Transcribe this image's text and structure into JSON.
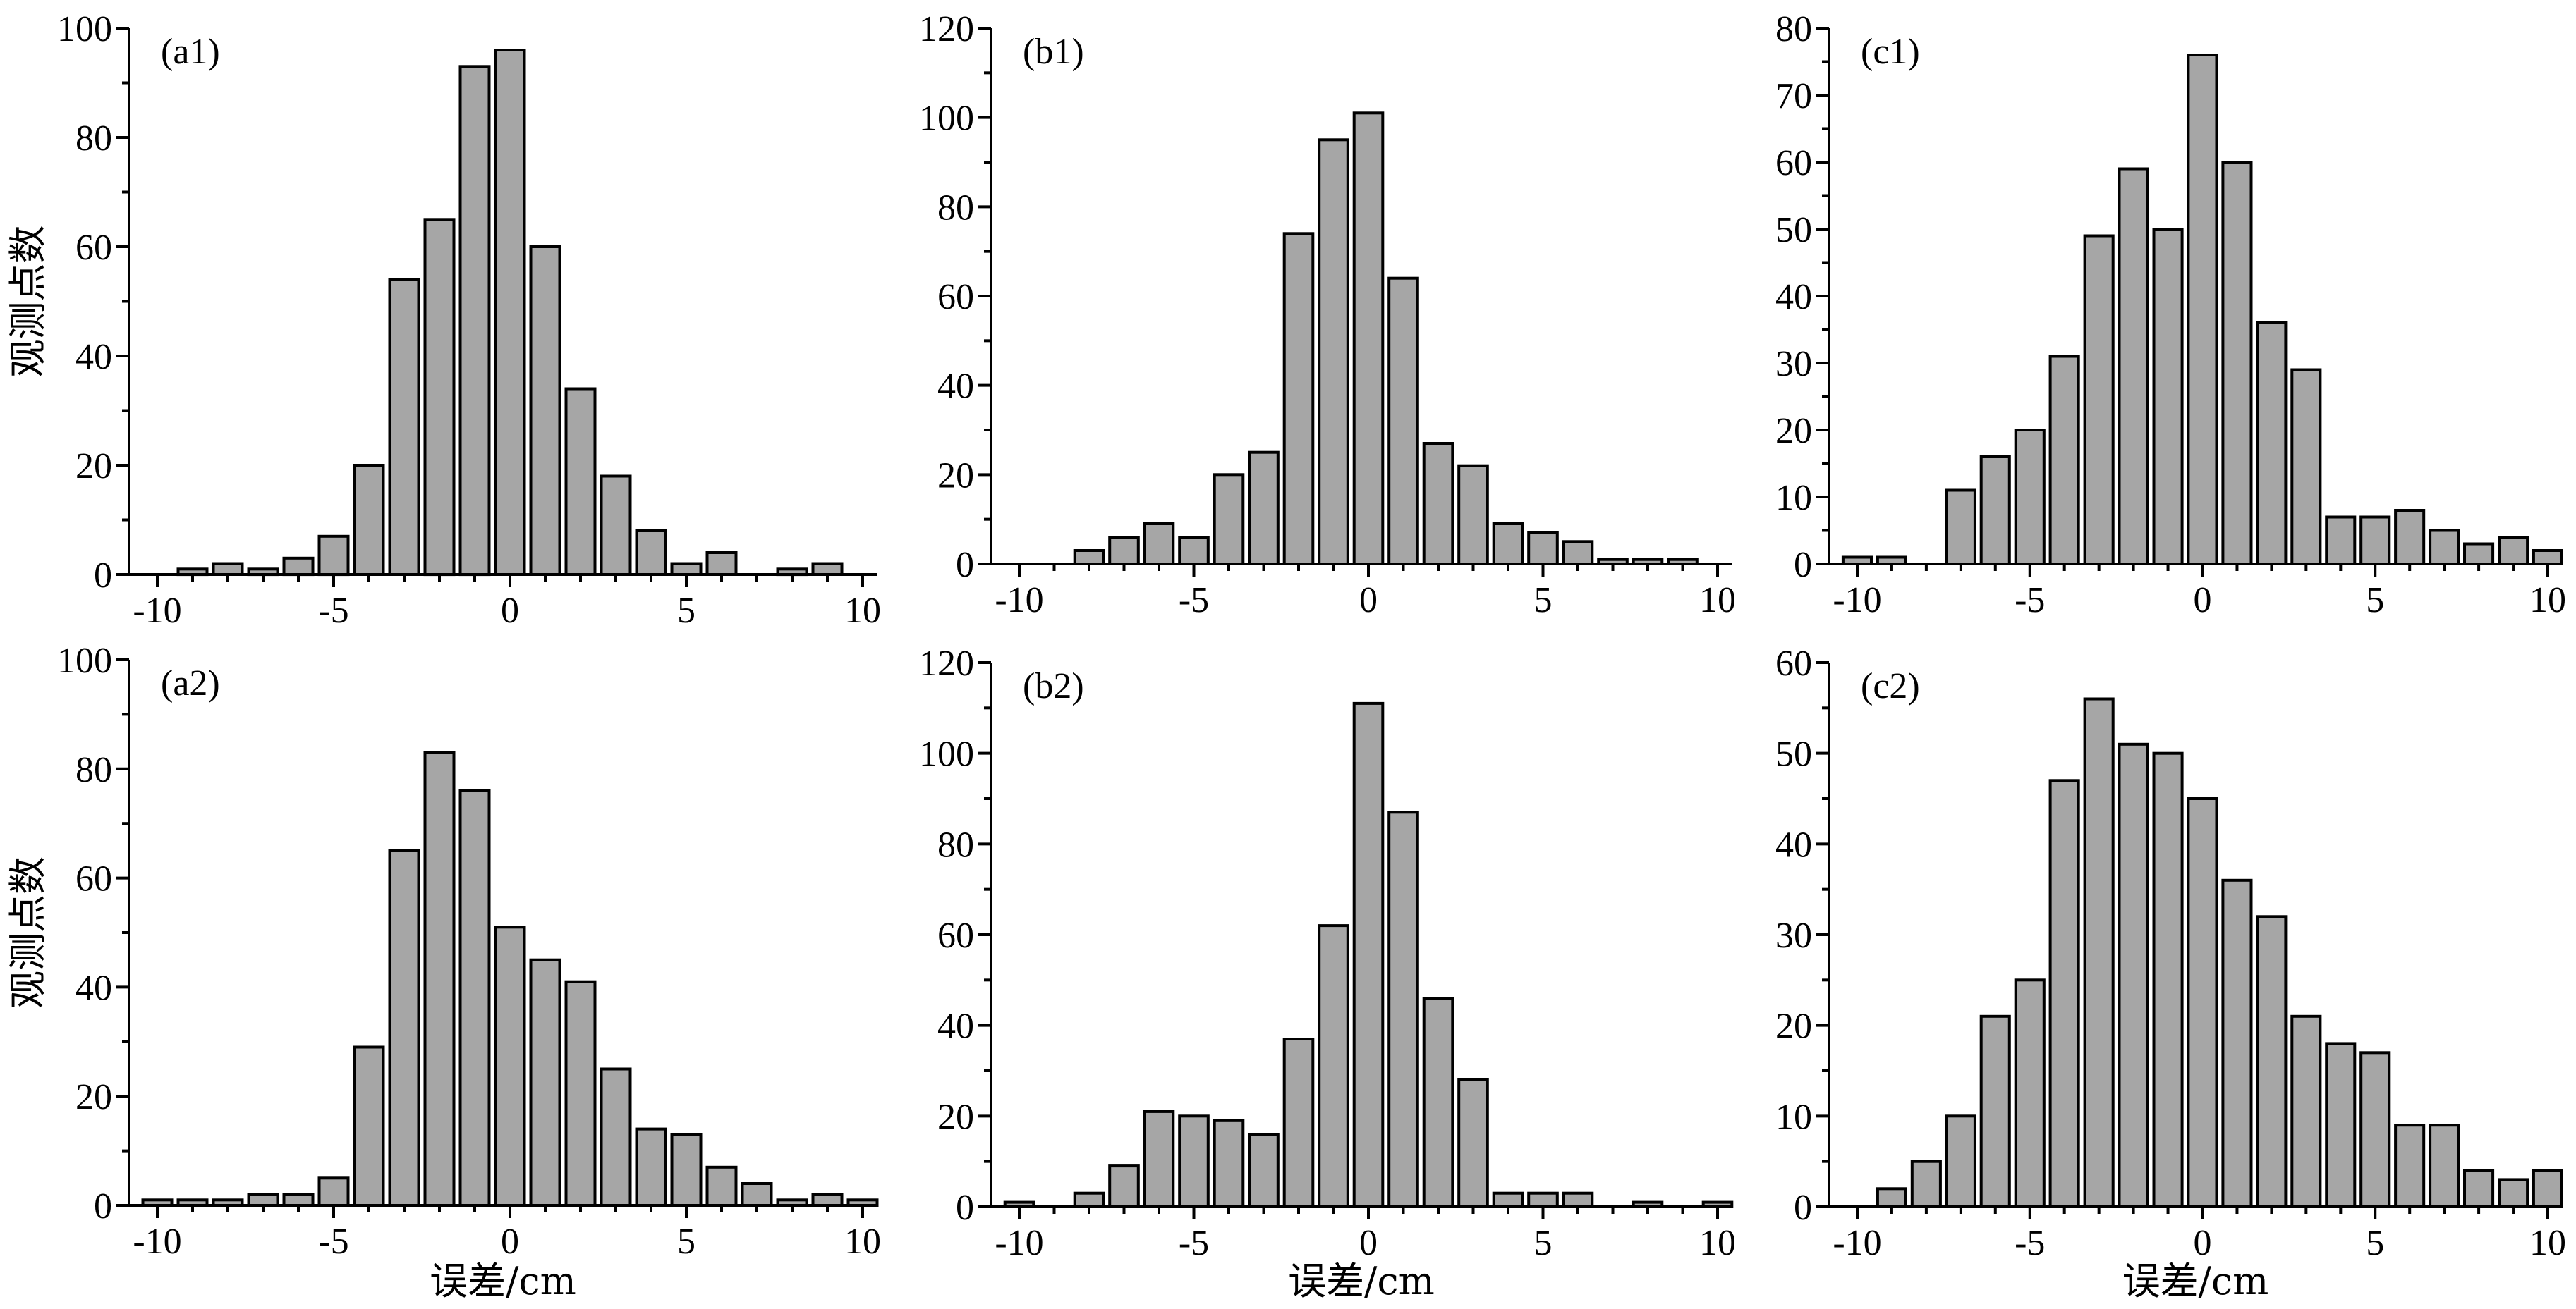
{
  "chart_data": [
    {
      "id": "a1",
      "panel_label": "(a1)",
      "type": "bar",
      "ylabel": "观测点数",
      "xlabel": "",
      "xlim": [
        -10,
        10
      ],
      "ylim": [
        0,
        100
      ],
      "xticks": [
        -10,
        -5,
        0,
        5,
        10
      ],
      "yticks": [
        0,
        20,
        40,
        60,
        80,
        100
      ],
      "y_minor_step": 10,
      "tick_labels_x": [
        "-10",
        "-5",
        "0",
        "5",
        "10"
      ],
      "tick_labels_y": [
        "0",
        "20",
        "40",
        "60",
        "80",
        "100"
      ],
      "x": [
        -9,
        -8,
        -7,
        -6,
        -5,
        -4,
        -3,
        -2,
        -1,
        0,
        1,
        2,
        3,
        4,
        5,
        6,
        8,
        9
      ],
      "values": [
        1,
        2,
        1,
        3,
        7,
        20,
        54,
        65,
        93,
        96,
        60,
        34,
        18,
        8,
        2,
        4,
        1,
        2
      ]
    },
    {
      "id": "b1",
      "panel_label": "(b1)",
      "type": "bar",
      "ylabel": "",
      "xlabel": "",
      "xlim": [
        -10,
        10
      ],
      "ylim": [
        0,
        120
      ],
      "xticks": [
        -10,
        -5,
        0,
        5,
        10
      ],
      "yticks": [
        0,
        20,
        40,
        60,
        80,
        100,
        120
      ],
      "y_minor_step": 10,
      "tick_labels_x": [
        "-10",
        "-5",
        "0",
        "5",
        "10"
      ],
      "tick_labels_y": [
        "0",
        "20",
        "40",
        "60",
        "80",
        "100",
        "120"
      ],
      "x": [
        -8,
        -7,
        -6,
        -5,
        -4,
        -3,
        -2,
        -1,
        0,
        1,
        2,
        3,
        4,
        5,
        6,
        7,
        8,
        9
      ],
      "values": [
        3,
        6,
        9,
        6,
        20,
        25,
        74,
        95,
        101,
        64,
        27,
        22,
        9,
        7,
        5,
        1,
        1,
        1
      ]
    },
    {
      "id": "c1",
      "panel_label": "(c1)",
      "type": "bar",
      "ylabel": "",
      "xlabel": "",
      "xlim": [
        -10,
        10
      ],
      "ylim": [
        0,
        80
      ],
      "xticks": [
        -10,
        -5,
        0,
        5,
        10
      ],
      "yticks": [
        0,
        10,
        20,
        30,
        40,
        50,
        60,
        70,
        80
      ],
      "y_minor_step": 5,
      "tick_labels_x": [
        "-10",
        "-5",
        "0",
        "5",
        "10"
      ],
      "tick_labels_y": [
        "0",
        "10",
        "20",
        "30",
        "40",
        "50",
        "60",
        "70",
        "80"
      ],
      "x": [
        -10,
        -9,
        -7,
        -6,
        -5,
        -4,
        -3,
        -2,
        -1,
        0,
        1,
        2,
        3,
        4,
        5,
        6,
        7,
        8,
        9,
        10
      ],
      "values": [
        1,
        1,
        11,
        16,
        20,
        31,
        49,
        59,
        50,
        76,
        60,
        36,
        29,
        7,
        7,
        8,
        5,
        3,
        4,
        2
      ]
    },
    {
      "id": "a2",
      "panel_label": "(a2)",
      "type": "bar",
      "ylabel": "观测点数",
      "xlabel": "误差/cm",
      "xlim": [
        -10,
        10
      ],
      "ylim": [
        0,
        100
      ],
      "xticks": [
        -10,
        -5,
        0,
        5,
        10
      ],
      "yticks": [
        0,
        20,
        40,
        60,
        80,
        100
      ],
      "y_minor_step": 10,
      "tick_labels_x": [
        "-10",
        "-5",
        "0",
        "5",
        "10"
      ],
      "tick_labels_y": [
        "0",
        "20",
        "40",
        "60",
        "80",
        "100"
      ],
      "x": [
        -10,
        -9,
        -8,
        -7,
        -6,
        -5,
        -4,
        -3,
        -2,
        -1,
        0,
        1,
        2,
        3,
        4,
        5,
        6,
        7,
        8,
        9,
        10
      ],
      "values": [
        1,
        1,
        1,
        2,
        2,
        5,
        29,
        65,
        83,
        76,
        51,
        45,
        41,
        25,
        14,
        13,
        7,
        4,
        1,
        2,
        1
      ]
    },
    {
      "id": "b2",
      "panel_label": "(b2)",
      "type": "bar",
      "ylabel": "",
      "xlabel": "误差/cm",
      "xlim": [
        -10,
        10
      ],
      "ylim": [
        0,
        120
      ],
      "xticks": [
        -10,
        -5,
        0,
        5,
        10
      ],
      "yticks": [
        0,
        20,
        40,
        60,
        80,
        100,
        120
      ],
      "y_minor_step": 10,
      "tick_labels_x": [
        "-10",
        "-5",
        "0",
        "5",
        "10"
      ],
      "tick_labels_y": [
        "0",
        "20",
        "40",
        "60",
        "80",
        "100",
        "120"
      ],
      "x": [
        -10,
        -8,
        -7,
        -6,
        -5,
        -4,
        -3,
        -2,
        -1,
        0,
        1,
        2,
        3,
        4,
        5,
        6,
        8,
        10
      ],
      "values": [
        1,
        3,
        9,
        21,
        20,
        19,
        16,
        37,
        62,
        111,
        87,
        46,
        28,
        3,
        3,
        3,
        1,
        1
      ]
    },
    {
      "id": "c2",
      "panel_label": "(c2)",
      "type": "bar",
      "ylabel": "",
      "xlabel": "误差/cm",
      "xlim": [
        -10,
        10
      ],
      "ylim": [
        0,
        60
      ],
      "xticks": [
        -10,
        -5,
        0,
        5,
        10
      ],
      "yticks": [
        0,
        10,
        20,
        30,
        40,
        50,
        60
      ],
      "y_minor_step": 5,
      "tick_labels_x": [
        "-10",
        "-5",
        "0",
        "5",
        "10"
      ],
      "tick_labels_y": [
        "0",
        "10",
        "20",
        "30",
        "40",
        "50",
        "60"
      ],
      "x": [
        -9,
        -8,
        -7,
        -6,
        -5,
        -4,
        -3,
        -2,
        -1,
        0,
        1,
        2,
        3,
        4,
        5,
        6,
        7,
        8,
        9,
        10
      ],
      "values": [
        2,
        5,
        10,
        21,
        25,
        47,
        56,
        51,
        50,
        45,
        36,
        32,
        21,
        18,
        17,
        9,
        9,
        4,
        3,
        4
      ]
    }
  ],
  "colors": {
    "bar_fill": "#a6a6a6",
    "bar_stroke": "#000000",
    "axis": "#000000"
  }
}
